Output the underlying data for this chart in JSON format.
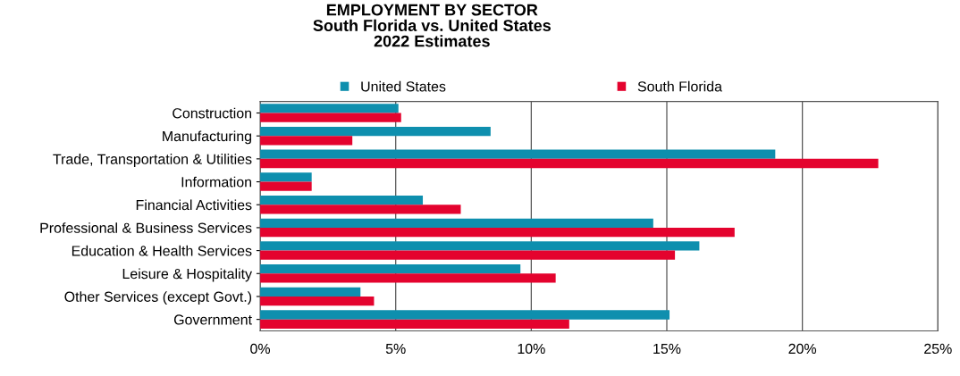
{
  "chart_data": {
    "type": "bar",
    "orientation": "horizontal",
    "title": "EMPLOYMENT BY SECTOR\nSouth Florida vs. United States\n2022 Estimates",
    "categories": [
      "Construction",
      "Manufacturing",
      "Trade, Transportation & Utilities",
      "Information",
      "Financial Activities",
      "Professional & Business Services",
      "Education & Health Services",
      "Leisure & Hospitality",
      "Other Services (except Govt.)",
      "Government"
    ],
    "series": [
      {
        "name": "United States",
        "color": "#0e8fae",
        "values": [
          5.1,
          8.5,
          19.0,
          1.9,
          6.0,
          14.5,
          16.2,
          9.6,
          3.7,
          15.1
        ]
      },
      {
        "name": "South Florida",
        "color": "#e4032e",
        "values": [
          5.2,
          3.4,
          22.8,
          1.9,
          7.4,
          17.5,
          15.3,
          10.9,
          4.2,
          11.4
        ]
      }
    ],
    "xlim": [
      0,
      25
    ],
    "xticks": [
      {
        "value": 0,
        "label": "0%"
      },
      {
        "value": 5,
        "label": "5%"
      },
      {
        "value": 10,
        "label": "10%"
      },
      {
        "value": 15,
        "label": "15%"
      },
      {
        "value": 20,
        "label": "20%"
      },
      {
        "value": 25,
        "label": "25%"
      }
    ],
    "grid": "x",
    "legend": "top"
  }
}
